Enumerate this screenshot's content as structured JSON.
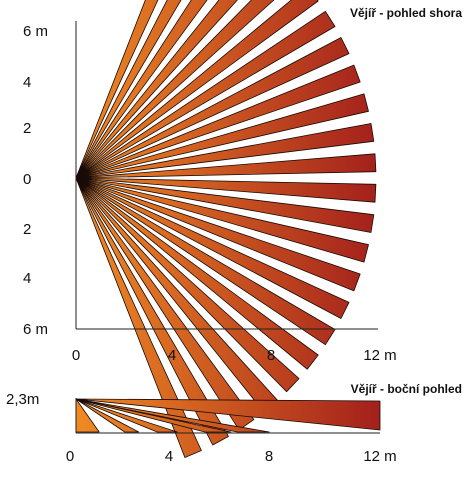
{
  "top_view": {
    "title": "Vějíř - pohled shora",
    "y_tick_labels": [
      "6 m",
      "4",
      "2",
      "0",
      "2",
      "4",
      "6 m"
    ],
    "x_tick_labels": [
      "0",
      "4",
      "8",
      "12 m"
    ],
    "range_m": 12,
    "half_width_m": 6,
    "beam_count": 24
  },
  "side_view": {
    "title": "Vějíř - boční pohled",
    "height_label": "2,3m",
    "x_tick_labels": [
      "0",
      "4",
      "8",
      "12 m"
    ],
    "beam_ends_m": [
      0.6,
      2.2,
      3.6,
      5.6,
      7.0,
      12
    ]
  },
  "colors": {
    "beam_start": "#f08a24",
    "beam_end": "#a3201c",
    "beam_outline": "#1a0a06",
    "axis": "#222222"
  }
}
